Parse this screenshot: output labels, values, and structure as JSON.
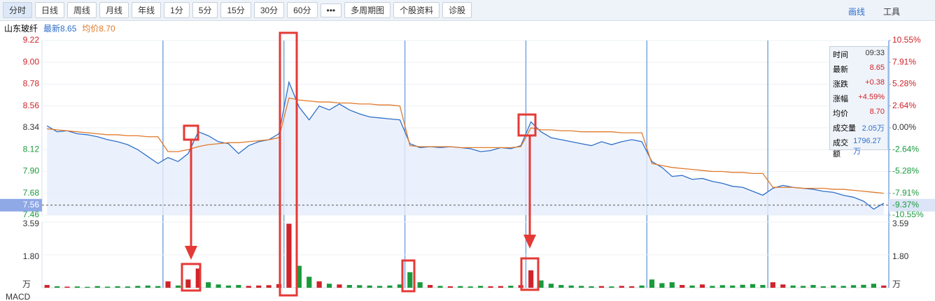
{
  "toolbar": {
    "buttons": [
      "分时",
      "日线",
      "周线",
      "月线",
      "年线",
      "1分",
      "5分",
      "15分",
      "30分",
      "60分",
      "•••",
      "多周期图",
      "个股资料",
      "诊股"
    ],
    "right": [
      "画线",
      "工具"
    ]
  },
  "header": {
    "name": "山东玻纤",
    "latest": "最新8.65",
    "avg": "均价8.70"
  },
  "info_panel": {
    "rows": [
      [
        "时间",
        "09:33"
      ],
      [
        "最新",
        "8.65"
      ],
      [
        "涨跌",
        "+0.38"
      ],
      [
        "涨幅",
        "+4.59%"
      ],
      [
        "均价",
        "8.70"
      ],
      [
        "成交量",
        "2.05万"
      ],
      [
        "成交额",
        "1796.27万"
      ]
    ]
  },
  "indicator": "MACD",
  "chart_data": {
    "type": "line",
    "ylim": [
      7.46,
      9.22
    ],
    "yticks": [
      9.22,
      {
        "value": 9.0,
        "label": "9.00"
      },
      8.78,
      8.56,
      8.34,
      8.12,
      {
        "value": 7.9,
        "label": "7.90"
      },
      7.68,
      7.46
    ],
    "y2lim": [
      -10.55,
      10.55
    ],
    "y2ticks": [
      {
        "value": 10.55,
        "label": "10.55%"
      },
      {
        "value": 7.91,
        "label": "7.91%"
      },
      {
        "value": 5.28,
        "label": "5.28%"
      },
      {
        "value": 2.64,
        "label": "2.64%"
      },
      {
        "value": 0,
        "label": "0.00%"
      },
      {
        "value": -2.64,
        "label": "-2.64%"
      },
      {
        "value": -5.28,
        "label": "-5.28%"
      },
      {
        "value": -7.91,
        "label": "-7.91%"
      },
      {
        "value": -10.55,
        "label": "-10.55%"
      }
    ],
    "grid": true,
    "series": [
      {
        "name": "最新",
        "color": "#2f6fc9",
        "values": [
          8.36,
          8.3,
          8.31,
          8.28,
          8.27,
          8.25,
          8.22,
          8.2,
          8.17,
          8.12,
          8.05,
          7.98,
          8.04,
          8.0,
          8.08,
          8.3,
          8.26,
          8.2,
          8.18,
          8.08,
          8.16,
          8.2,
          8.22,
          8.28,
          8.8,
          8.55,
          8.42,
          8.56,
          8.52,
          8.58,
          8.52,
          8.48,
          8.45,
          8.44,
          8.43,
          8.42,
          8.18,
          8.14,
          8.15,
          8.14,
          8.15,
          8.14,
          8.13,
          8.1,
          8.11,
          8.14,
          8.13,
          8.16,
          8.4,
          8.3,
          8.24,
          8.22,
          8.2,
          8.18,
          8.16,
          8.2,
          8.17,
          8.2,
          8.22,
          8.2,
          8.0,
          7.94,
          7.85,
          7.86,
          7.82,
          7.83,
          7.8,
          7.78,
          7.75,
          7.74,
          7.7,
          7.66,
          7.73,
          7.76,
          7.74,
          7.73,
          7.72,
          7.7,
          7.69,
          7.66,
          7.64,
          7.6,
          7.52,
          7.58
        ]
      },
      {
        "name": "均价",
        "color": "#e07a2a",
        "values": [
          8.33,
          8.32,
          8.31,
          8.3,
          8.29,
          8.28,
          8.27,
          8.27,
          8.26,
          8.26,
          8.25,
          8.25,
          8.1,
          8.1,
          8.12,
          8.15,
          8.17,
          8.18,
          8.19,
          8.19,
          8.2,
          8.21,
          8.22,
          8.24,
          8.64,
          8.62,
          8.61,
          8.6,
          8.6,
          8.59,
          8.59,
          8.58,
          8.58,
          8.57,
          8.57,
          8.56,
          8.16,
          8.15,
          8.15,
          8.15,
          8.15,
          8.14,
          8.14,
          8.14,
          8.14,
          8.14,
          8.14,
          8.15,
          8.34,
          8.32,
          8.32,
          8.31,
          8.31,
          8.3,
          8.3,
          8.3,
          8.3,
          8.29,
          8.29,
          8.29,
          7.98,
          7.96,
          7.94,
          7.93,
          7.92,
          7.91,
          7.9,
          7.9,
          7.89,
          7.89,
          7.88,
          7.88,
          7.74,
          7.74,
          7.74,
          7.73,
          7.73,
          7.73,
          7.72,
          7.72,
          7.71,
          7.7,
          7.69,
          7.68
        ]
      }
    ],
    "marker_value": 7.56,
    "marker_pct": {
      "value": -9.37,
      "label": "-9.37%"
    },
    "volume": {
      "ylim": [
        0,
        3.59
      ],
      "yticks": [
        3.59,
        {
          "value": 1.8,
          "label": "1.80"
        }
      ],
      "unit": "万",
      "values": [
        0.15,
        0.08,
        0.06,
        0.07,
        0.05,
        0.09,
        0.06,
        0.08,
        0.07,
        0.1,
        0.12,
        0.09,
        0.35,
        0.12,
        0.45,
        1.05,
        0.3,
        0.18,
        0.12,
        0.15,
        0.1,
        0.12,
        0.14,
        0.2,
        3.5,
        1.2,
        0.6,
        0.35,
        0.22,
        0.18,
        0.15,
        0.14,
        0.12,
        0.1,
        0.12,
        0.18,
        0.85,
        0.3,
        0.15,
        0.1,
        0.08,
        0.09,
        0.07,
        0.1,
        0.08,
        0.09,
        0.11,
        0.14,
        0.95,
        0.4,
        0.22,
        0.15,
        0.12,
        0.1,
        0.08,
        0.09,
        0.07,
        0.1,
        0.08,
        0.12,
        0.45,
        0.25,
        0.3,
        0.15,
        0.12,
        0.18,
        0.1,
        0.14,
        0.12,
        0.16,
        0.2,
        0.15,
        0.3,
        0.18,
        0.12,
        0.1,
        0.15,
        0.08,
        0.12,
        0.1,
        0.14,
        0.16,
        0.22,
        0.12
      ]
    }
  }
}
